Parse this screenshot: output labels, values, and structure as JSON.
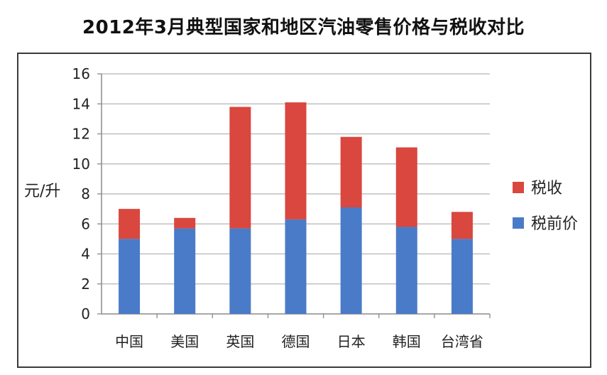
{
  "chart_data": {
    "type": "bar",
    "stacked": true,
    "title": "2012年3月典型国家和地区汽油零售价格与税收对比",
    "ylabel": "元/升",
    "xlabel": "",
    "ylim": [
      0,
      16
    ],
    "yticks": [
      0,
      2,
      4,
      6,
      8,
      10,
      12,
      14,
      16
    ],
    "grid": true,
    "legend_position": "right",
    "categories": [
      "中国",
      "美国",
      "英国",
      "德国",
      "日本",
      "韩国",
      "台湾省"
    ],
    "series": [
      {
        "name": "税前价",
        "color": "#4a7bc8",
        "values": [
          5.0,
          5.7,
          5.7,
          6.3,
          7.1,
          5.8,
          5.0
        ]
      },
      {
        "name": "税收",
        "color": "#d9473e",
        "values": [
          2.0,
          0.7,
          8.1,
          7.8,
          4.7,
          5.3,
          1.8
        ]
      }
    ],
    "legend_order": [
      "税收",
      "税前价"
    ]
  }
}
